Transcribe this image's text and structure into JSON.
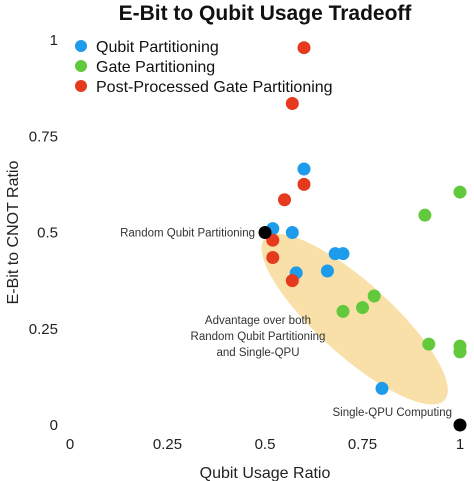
{
  "chart_data": {
    "type": "scatter",
    "title": "E-Bit to Qubit Usage Tradeoff",
    "xlabel": "Qubit Usage Ratio",
    "ylabel": "E-Bit to CNOT Ratio",
    "xlim": [
      0,
      1
    ],
    "ylim": [
      0,
      1
    ],
    "x_ticks": [
      "0",
      "0.25",
      "0.5",
      "0.75",
      "1"
    ],
    "x_tick_values": [
      0,
      0.25,
      0.5,
      0.75,
      1
    ],
    "y_ticks": [
      "0",
      "0.25",
      "0.5",
      "0.75",
      "1"
    ],
    "y_tick_values": [
      0,
      0.25,
      0.5,
      0.75,
      1
    ],
    "grid": false,
    "legend_position": "top-left",
    "region": {
      "center": [
        0.73,
        0.275
      ],
      "half_axes": [
        0.31,
        0.095
      ],
      "angle_degrees": -42,
      "color": "#f9dfa8"
    },
    "series": [
      {
        "name": "Qubit Partitioning",
        "color": "#1e9bea",
        "points": [
          [
            0.52,
            0.51
          ],
          [
            0.6,
            0.665
          ],
          [
            0.57,
            0.5
          ],
          [
            0.58,
            0.395
          ],
          [
            0.66,
            0.4
          ],
          [
            0.68,
            0.445
          ],
          [
            0.7,
            0.445
          ],
          [
            0.8,
            0.095
          ]
        ]
      },
      {
        "name": "Gate Partitioning",
        "color": "#62c93c",
        "points": [
          [
            1.0,
            0.605
          ],
          [
            0.91,
            0.545
          ],
          [
            0.78,
            0.335
          ],
          [
            0.75,
            0.305
          ],
          [
            0.7,
            0.295
          ],
          [
            0.92,
            0.21
          ],
          [
            1.0,
            0.205
          ],
          [
            1.0,
            0.19
          ]
        ]
      },
      {
        "name": "Post-Processed Gate Partitioning",
        "color": "#e53a1e",
        "points": [
          [
            0.6,
            0.98
          ],
          [
            0.57,
            0.835
          ],
          [
            0.6,
            0.625
          ],
          [
            0.55,
            0.585
          ],
          [
            0.52,
            0.48
          ],
          [
            0.52,
            0.435
          ],
          [
            0.57,
            0.375
          ]
        ]
      }
    ],
    "markers": [
      {
        "label": "Random Qubit Partitioning",
        "x": 0.5,
        "y": 0.5,
        "color": "#000000"
      },
      {
        "label": "Single-QPU Computing",
        "x": 1.0,
        "y": 0.0,
        "color": "#000000"
      }
    ],
    "annotation": {
      "lines": [
        "Advantage over both",
        "Random Qubit Partitioning",
        "and Single-QPU"
      ]
    }
  }
}
